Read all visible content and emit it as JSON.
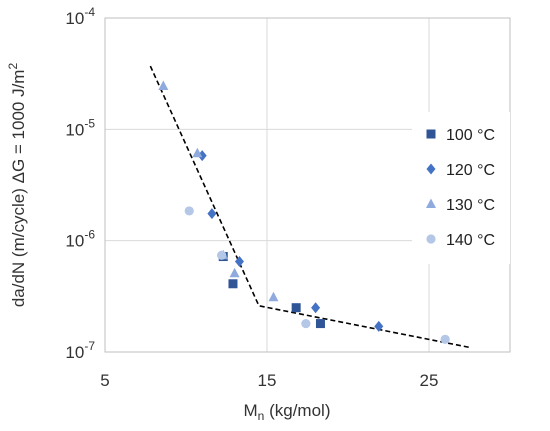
{
  "chart_data": {
    "type": "scatter",
    "xlabel_main": "M",
    "xlabel_sub": "n",
    "xlabel_rest": " (kg/mol)",
    "ylabel": "da/dN (m/cycle)  ΔG = 1000 J/m",
    "ylabel_sup": "2",
    "xlim": [
      5,
      30
    ],
    "ylim": [
      1e-07,
      0.0001
    ],
    "y_scale": "log",
    "grid": true,
    "legend_position": "right",
    "x_ticks": [
      {
        "value": 5,
        "label": "5"
      },
      {
        "value": 15,
        "label": "15"
      },
      {
        "value": 25,
        "label": "25"
      }
    ],
    "y_ticks": [
      {
        "value": 1e-07,
        "base": "10",
        "exp": "-7"
      },
      {
        "value": 1e-06,
        "base": "10",
        "exp": "-6"
      },
      {
        "value": 1e-05,
        "base": "10",
        "exp": "-5"
      },
      {
        "value": 0.0001,
        "base": "10",
        "exp": "-4"
      }
    ],
    "series": [
      {
        "name": "100 °C",
        "marker": "square",
        "color": "#2f5597",
        "points": [
          [
            12.3,
            7.2e-07
          ],
          [
            12.9,
            4.1e-07
          ],
          [
            16.8,
            2.5e-07
          ],
          [
            18.3,
            1.8e-07
          ]
        ]
      },
      {
        "name": "120 °C",
        "marker": "diamond",
        "color": "#4472c4",
        "points": [
          [
            11.0,
            5.8e-06
          ],
          [
            11.6,
            1.75e-06
          ],
          [
            13.3,
            6.5e-07
          ],
          [
            18.0,
            2.5e-07
          ],
          [
            21.9,
            1.7e-07
          ]
        ]
      },
      {
        "name": "130 °C",
        "marker": "triangle",
        "color": "#8faadc",
        "points": [
          [
            8.6,
            2.45e-05
          ],
          [
            10.7,
            6.1e-06
          ],
          [
            12.3,
            7.4e-07
          ],
          [
            13.0,
            5.1e-07
          ],
          [
            15.4,
            3.1e-07
          ]
        ]
      },
      {
        "name": "140 °C",
        "marker": "circle",
        "color": "#b4c7e7",
        "points": [
          [
            10.2,
            1.85e-06
          ],
          [
            12.2,
            7.4e-07
          ],
          [
            17.4,
            1.8e-07
          ],
          [
            26.0,
            1.3e-07
          ]
        ]
      }
    ],
    "trendline": {
      "style": "dashed",
      "color": "#000000",
      "points": [
        [
          7.8,
          3.7e-05
        ],
        [
          14.5,
          2.6e-07
        ],
        [
          27.5,
          1.1e-07
        ]
      ]
    }
  }
}
